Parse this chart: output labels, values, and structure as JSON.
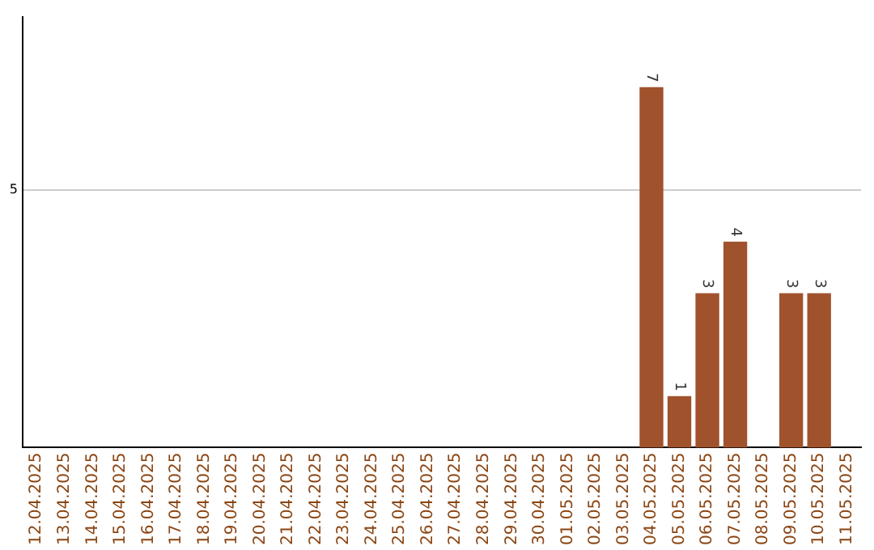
{
  "chart_data": {
    "type": "bar",
    "categories": [
      "12.04.2025",
      "13.04.2025",
      "14.04.2025",
      "15.04.2025",
      "16.04.2025",
      "17.04.2025",
      "18.04.2025",
      "19.04.2025",
      "20.04.2025",
      "21.04.2025",
      "22.04.2025",
      "23.04.2025",
      "24.04.2025",
      "25.04.2025",
      "26.04.2025",
      "27.04.2025",
      "28.04.2025",
      "29.04.2025",
      "30.04.2025",
      "01.05.2025",
      "02.05.2025",
      "03.05.2025",
      "04.05.2025",
      "05.05.2025",
      "06.05.2025",
      "07.05.2025",
      "08.05.2025",
      "09.05.2025",
      "10.05.2025",
      "11.05.2025"
    ],
    "values": [
      null,
      null,
      null,
      null,
      null,
      null,
      null,
      null,
      null,
      null,
      null,
      null,
      null,
      null,
      null,
      null,
      null,
      null,
      null,
      null,
      null,
      null,
      7,
      1,
      3,
      4,
      null,
      3,
      3,
      null
    ],
    "data_labels": true,
    "color": "#a0522d",
    "ref_lines": [
      {
        "axis": "y",
        "value": 5,
        "label": "5",
        "color": "#cccccc"
      }
    ],
    "legend": false
  }
}
